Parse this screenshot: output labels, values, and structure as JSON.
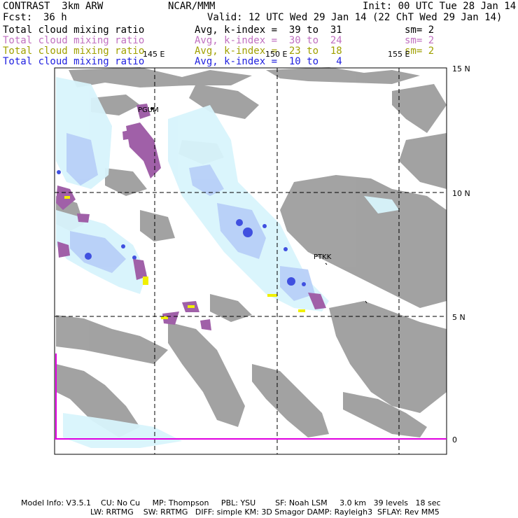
{
  "header": {
    "title": "CONTRAST  3km ARW",
    "center": "NCAR/MMM",
    "init": "Init: 00 UTC Tue 28 Jan 14",
    "fcst_label": "Fcst:",
    "fcst_value": "36 h",
    "valid": "Valid: 12 UTC Wed 29 Jan 14 (22 ChT Wed 29 Jan 14)"
  },
  "fields": [
    {
      "name": "Total cloud mixing ratio",
      "avg": "Avg, k-index =  39 to  31",
      "sm": "sm= 2",
      "color": "#000000"
    },
    {
      "name": "Total cloud mixing ratio",
      "avg": "Avg, k-index =  30 to  24",
      "sm": "sm= 2",
      "color": "#c070c0"
    },
    {
      "name": "Total cloud mixing ratio",
      "avg": "Avg, k-index =  23 to  18",
      "sm": "sm= 2",
      "color": "#a0a000"
    },
    {
      "name": "Total cloud mixing ratio",
      "avg": "Avg, k-index =  10 to   4",
      "sm": "",
      "color": "#2020e0"
    }
  ],
  "map": {
    "lon_labels": [
      "145 E",
      "150 E",
      "155 E"
    ],
    "lat_labels": [
      "15 N",
      "10 N",
      "5 N",
      "0"
    ],
    "stations": [
      "PGUM",
      "PTKK"
    ],
    "colors": {
      "land": "#999999",
      "cloud_light": "#d8f4fc",
      "cloud_mid": "#b8d0f8",
      "cloud_dark": "#4050e0",
      "high_cloud": "#a060a8",
      "mid_cloud": "#f0f000",
      "equator": "#e000e0"
    }
  },
  "footer": {
    "line1": "Model Info: V3.5.1    CU: No Cu     MP: Thompson     PBL: YSU        SF: Noah LSM     3.0 km   39 levels   18 sec",
    "line2": "LW: RRTMG    SW: RRTMG   DIFF: simple KM: 3D Smagor DAMP: Rayleigh3  SFLAY: Rev MM5"
  }
}
